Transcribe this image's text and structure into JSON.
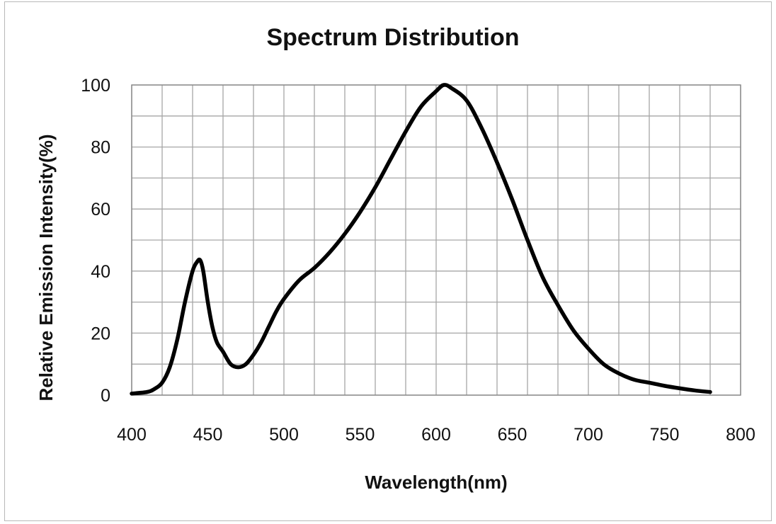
{
  "chart_data": {
    "type": "line",
    "title": "Spectrum Distribution",
    "xlabel": "Wavelength(nm)",
    "ylabel": "Relative Emission Intensity(%)",
    "xlim": [
      400,
      800
    ],
    "ylim": [
      0,
      100
    ],
    "x_ticks": [
      "400",
      "450",
      "500",
      "550",
      "600",
      "650",
      "700",
      "750",
      "800"
    ],
    "y_ticks": [
      "0",
      "20",
      "40",
      "60",
      "80",
      "100"
    ],
    "x_minor_step": 20,
    "y_minor_step": 10,
    "grid": true,
    "line_color": "#000000",
    "series": [
      {
        "x": [
          400,
          410,
          415,
          420,
          425,
          430,
          435,
          440,
          443,
          445,
          447,
          450,
          453,
          456,
          460,
          465,
          470,
          475,
          480,
          485,
          490,
          495,
          500,
          510,
          520,
          530,
          540,
          550,
          560,
          570,
          580,
          590,
          600,
          605,
          610,
          620,
          630,
          640,
          650,
          660,
          670,
          680,
          690,
          700,
          710,
          720,
          730,
          740,
          750,
          760,
          770,
          780
        ],
        "y": [
          0.5,
          1,
          2,
          4,
          9,
          18,
          30,
          40,
          43,
          43.5,
          40,
          30,
          22,
          17,
          14,
          10,
          9,
          10,
          13,
          17,
          22,
          27,
          31,
          37,
          41,
          46,
          52,
          59,
          67,
          76,
          85,
          93,
          98,
          100,
          99,
          95,
          86,
          75,
          63,
          50,
          38,
          29,
          21,
          15,
          10,
          7,
          5,
          4,
          3,
          2.2,
          1.5,
          1
        ]
      }
    ]
  }
}
